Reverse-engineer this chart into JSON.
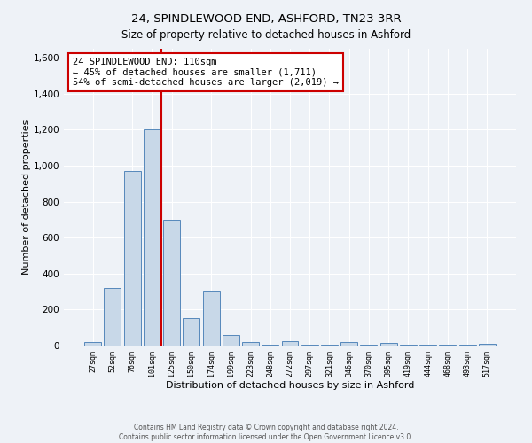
{
  "title1": "24, SPINDLEWOOD END, ASHFORD, TN23 3RR",
  "title2": "Size of property relative to detached houses in Ashford",
  "xlabel": "Distribution of detached houses by size in Ashford",
  "ylabel": "Number of detached properties",
  "categories": [
    "27sqm",
    "52sqm",
    "76sqm",
    "101sqm",
    "125sqm",
    "150sqm",
    "174sqm",
    "199sqm",
    "223sqm",
    "248sqm",
    "272sqm",
    "297sqm",
    "321sqm",
    "346sqm",
    "370sqm",
    "395sqm",
    "419sqm",
    "444sqm",
    "468sqm",
    "493sqm",
    "517sqm"
  ],
  "values": [
    20,
    320,
    970,
    1200,
    700,
    155,
    300,
    60,
    20,
    5,
    25,
    5,
    5,
    20,
    5,
    15,
    5,
    5,
    5,
    5,
    10
  ],
  "bar_color": "#c8d8e8",
  "bar_edge_color": "#5588bb",
  "vline_color": "#cc0000",
  "annotation_text": "24 SPINDLEWOOD END: 110sqm\n← 45% of detached houses are smaller (1,711)\n54% of semi-detached houses are larger (2,019) →",
  "annotation_box_color": "#ffffff",
  "annotation_box_edge": "#cc0000",
  "ylim": [
    0,
    1650
  ],
  "yticks": [
    0,
    200,
    400,
    600,
    800,
    1000,
    1200,
    1400,
    1600
  ],
  "footer1": "Contains HM Land Registry data © Crown copyright and database right 2024.",
  "footer2": "Contains public sector information licensed under the Open Government Licence v3.0.",
  "bg_color": "#eef2f7",
  "plot_bg_color": "#eef2f7",
  "grid_color": "#ffffff"
}
